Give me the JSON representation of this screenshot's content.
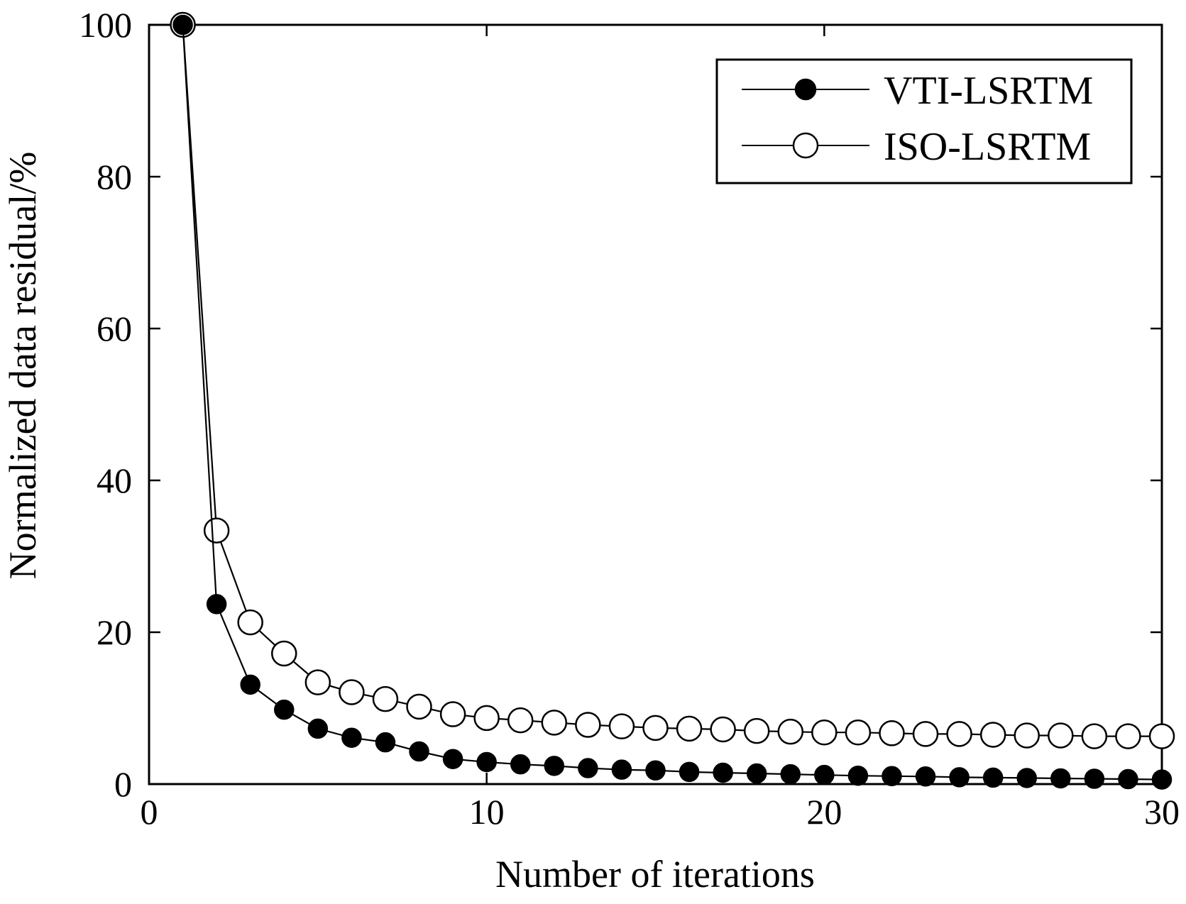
{
  "chart_data": {
    "type": "line",
    "title": "",
    "xlabel": "Number of iterations",
    "ylabel": "Normalized data residual/%",
    "xlim": [
      0,
      30
    ],
    "ylim": [
      0,
      100
    ],
    "xticks": [
      0,
      10,
      20,
      30
    ],
    "yticks": [
      0,
      20,
      40,
      60,
      80,
      100
    ],
    "grid": false,
    "legend_position": "top-right",
    "x": [
      1,
      2,
      3,
      4,
      5,
      6,
      7,
      8,
      9,
      10,
      11,
      12,
      13,
      14,
      15,
      16,
      17,
      18,
      19,
      20,
      21,
      22,
      23,
      24,
      25,
      26,
      27,
      28,
      29,
      30
    ],
    "series": [
      {
        "name": "VTI-LSRTM",
        "marker": "filled-circle",
        "color": "#000000",
        "values": [
          100,
          23.7,
          13.1,
          9.8,
          7.3,
          6.1,
          5.5,
          4.3,
          3.3,
          2.9,
          2.6,
          2.4,
          2.1,
          1.9,
          1.8,
          1.6,
          1.5,
          1.4,
          1.3,
          1.2,
          1.1,
          1.05,
          1.0,
          0.9,
          0.85,
          0.8,
          0.75,
          0.7,
          0.65,
          0.6
        ]
      },
      {
        "name": "ISO-LSRTM",
        "marker": "open-circle",
        "color": "#000000",
        "values": [
          100,
          33.4,
          21.3,
          17.2,
          13.4,
          12.1,
          11.2,
          10.2,
          9.2,
          8.7,
          8.4,
          8.1,
          7.8,
          7.6,
          7.4,
          7.3,
          7.2,
          7.0,
          6.9,
          6.8,
          6.8,
          6.7,
          6.6,
          6.6,
          6.5,
          6.4,
          6.4,
          6.3,
          6.3,
          6.3
        ]
      }
    ]
  }
}
